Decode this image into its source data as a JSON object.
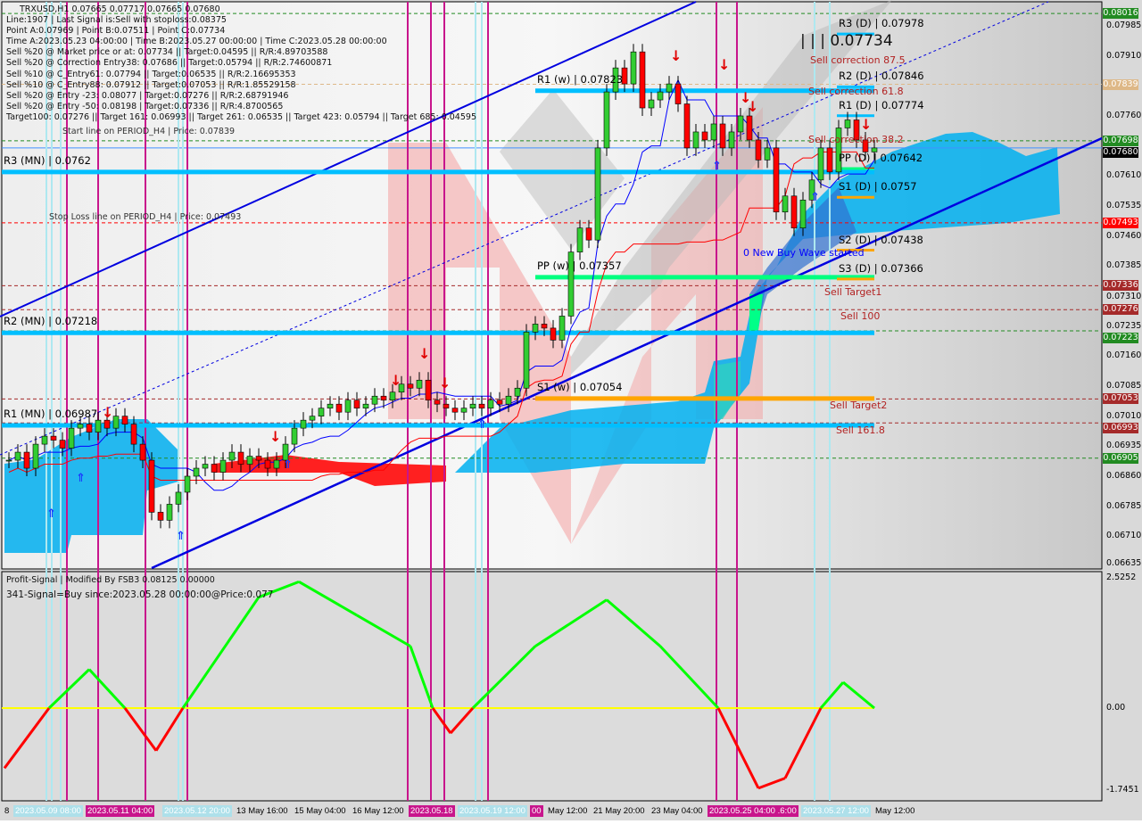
{
  "header": {
    "symbol_line": "TRXUSD,H1  0.07665 0.07717 0.07665 0.07680",
    "info_lines": [
      "Line:1907 | Last Signal is:Sell with stoploss:0.08375",
      "Point A:0.07969 | Point B:0.07511 | Point C:0.07734",
      "Time A:2023.05.23 04:00:00 | Time B:2023.05.27 00:00:00 | Time C:2023.05.28 00:00:00",
      "Sell %20 @ Market price or at: 0.07734 || Target:0.04595 || R/R:4.89703588",
      "Sell %20 @ Correction Entry38: 0.07686 || Target:0.05794 || R/R:2.74600871",
      "Sell %10 @ C_Entry61: 0.07794 || Target:0.06535 || R/R:2.16695353",
      "Sell %10 @ C_Entry88: 0.07912 || Target:0.07053 || R/R:1.85529158",
      "Sell %20 @ Entry -23: 0.08077 | Target:0.07276 || R/R:2.68791946",
      "Sell %20 @ Entry -50: 0.08198 | Target:0.07336 || R/R:4.8700565",
      "Target100: 0.07276 || Target 161: 0.06993 || Target 261: 0.06535 || Target 423: 0.05794 || Target 685: 0.04595"
    ],
    "start_line": "Start line on PERIOD_H4 | Price: 0.07839",
    "stop_loss_line": "Stop Loss line on PERIOD_H4 | Price: 0.07493"
  },
  "annotations": {
    "point_c": "| | | 0.07734",
    "sell_correction_875": "Sell correction 87.5",
    "sell_correction_618": "Sell correction 61.8",
    "sell_correction_382": "Sell correction 38.2",
    "new_buy_wave": "0 New Buy Wave started",
    "sell_target1": "Sell Target1",
    "sell_100": "Sell 100",
    "sell_target2": "Sell Target2",
    "sell_1618": "Sell 161.8"
  },
  "pivots": [
    {
      "label": "R3 (MN) | 0.0762",
      "price": 0.0762,
      "color": "#00bfff",
      "period": "MN"
    },
    {
      "label": "R2 (MN) | 0.07218",
      "price": 0.07218,
      "color": "#00bfff",
      "period": "MN"
    },
    {
      "label": "R1 (MN) | 0.06987",
      "price": 0.06987,
      "color": "#00bfff",
      "period": "MN"
    },
    {
      "label": "R1 (w) | 0.07823",
      "price": 0.07823,
      "color": "#00bfff",
      "period": "w"
    },
    {
      "label": "PP (w) | 0.07357",
      "price": 0.07357,
      "color": "#00ff7f",
      "period": "w"
    },
    {
      "label": "S1 (w) | 0.07054",
      "price": 0.07054,
      "color": "#ffa500",
      "period": "w"
    },
    {
      "label": "R3 (D) | 0.07978",
      "price": 0.07978,
      "color": "#00bfff",
      "period": "D"
    },
    {
      "label": "R2 (D) | 0.07846",
      "price": 0.07846,
      "color": "#00bfff",
      "period": "D"
    },
    {
      "label": "R1 (D) | 0.07774",
      "price": 0.07774,
      "color": "#00bfff",
      "period": "D"
    },
    {
      "label": "PP (D) | 0.07642",
      "price": 0.07642,
      "color": "#00ff7f",
      "period": "D"
    },
    {
      "label": "S1 (D) | 0.0757",
      "price": 0.0757,
      "color": "#ffa500",
      "period": "D"
    },
    {
      "label": "S2 (D) | 0.07438",
      "price": 0.07438,
      "color": "#ffa500",
      "period": "D"
    },
    {
      "label": "S3 (D) | 0.07366",
      "price": 0.07366,
      "color": "#ffa500",
      "period": "D"
    }
  ],
  "price_tags": [
    {
      "value": "0.08016",
      "price": 0.08016,
      "color": "#228b22"
    },
    {
      "value": "0.07839",
      "price": 0.07839,
      "color": "#deb887"
    },
    {
      "value": "0.07698",
      "price": 0.07698,
      "color": "#228b22"
    },
    {
      "value": "0.07680",
      "price": 0.0768,
      "color": "#000000"
    },
    {
      "value": "0.07493",
      "price": 0.07493,
      "color": "#ff0000"
    },
    {
      "value": "0.07336",
      "price": 0.07336,
      "color": "#a52a2a"
    },
    {
      "value": "0.07276",
      "price": 0.07276,
      "color": "#a52a2a"
    },
    {
      "value": "0.07223",
      "price": 0.07223,
      "color": "#228b22"
    },
    {
      "value": "0.07053",
      "price": 0.07053,
      "color": "#a52a2a"
    },
    {
      "value": "0.06993",
      "price": 0.06993,
      "color": "#a52a2a"
    },
    {
      "value": "0.06905",
      "price": 0.06905,
      "color": "#228b22"
    }
  ],
  "indicator": {
    "title": "Profit-Signal | Modified By FSB3 0.08125 0.00000",
    "signal": "341-Signal=Buy since:2023.05.28 00:00:00@Price:0.077"
  },
  "chart_data": [
    {
      "type": "candlestick",
      "symbol": "TRXUSD",
      "timeframe": "H1",
      "ylim": [
        0.06635,
        0.07985
      ],
      "y_ticks": [
        "0.07985",
        "0.07910",
        "0.07760",
        "0.07610",
        "0.07535",
        "0.07460",
        "0.07385",
        "0.07310",
        "0.07235",
        "0.07160",
        "0.07085",
        "0.07010",
        "0.06935",
        "0.06860",
        "0.06785",
        "0.06710",
        "0.06635"
      ],
      "x_ticks": [
        {
          "label": "8",
          "style": "plain"
        },
        {
          "label": "2023.05.09 08:00",
          "style": "cyan"
        },
        {
          "label": "2023.05.11 04:00",
          "style": "magenta"
        },
        {
          "label": "2023.05.12 20:00",
          "style": "cyan"
        },
        {
          "label": "13 May 16:00",
          "style": "plain"
        },
        {
          "label": "15 May 04:00",
          "style": "plain"
        },
        {
          "label": "16 May 12:00",
          "style": "plain"
        },
        {
          "label": "2023.05.18",
          "style": "magenta"
        },
        {
          "label": "2023.05.19 12:00",
          "style": "cyan"
        },
        {
          "label": "00",
          "style": "magenta"
        },
        {
          "label": "May 12:00",
          "style": "plain"
        },
        {
          "label": "21 May 20:00",
          "style": "plain"
        },
        {
          "label": "23 May 04:00",
          "style": "plain"
        },
        {
          "label": "2023.05.25 04:00 .6:00",
          "style": "magenta"
        },
        {
          "label": "2023.05.27 12:00",
          "style": "cyan"
        },
        {
          "label": "May 12:00",
          "style": "plain"
        }
      ],
      "close": [
        0.069,
        0.0692,
        0.0688,
        0.0694,
        0.0696,
        0.0695,
        0.0693,
        0.0698,
        0.0699,
        0.0697,
        0.07,
        0.0698,
        0.0701,
        0.0699,
        0.0694,
        0.069,
        0.0677,
        0.0675,
        0.0679,
        0.0682,
        0.0686,
        0.0688,
        0.0689,
        0.0687,
        0.069,
        0.0692,
        0.0689,
        0.0691,
        0.069,
        0.0688,
        0.069,
        0.0694,
        0.0698,
        0.07,
        0.0701,
        0.0703,
        0.0704,
        0.0702,
        0.0705,
        0.0703,
        0.0704,
        0.0706,
        0.0705,
        0.0707,
        0.0709,
        0.0708,
        0.071,
        0.0705,
        0.0704,
        0.0703,
        0.0702,
        0.0703,
        0.0704,
        0.0703,
        0.0705,
        0.0704,
        0.0706,
        0.0708,
        0.0722,
        0.0724,
        0.0723,
        0.072,
        0.0726,
        0.0742,
        0.0748,
        0.0745,
        0.0768,
        0.0782,
        0.0788,
        0.0784,
        0.0792,
        0.0778,
        0.078,
        0.0782,
        0.0784,
        0.0779,
        0.0768,
        0.0772,
        0.077,
        0.0774,
        0.0768,
        0.0772,
        0.0776,
        0.077,
        0.0765,
        0.0768,
        0.0752,
        0.0756,
        0.0748,
        0.0755,
        0.076,
        0.0768,
        0.0762,
        0.0773,
        0.0775,
        0.077,
        0.0767,
        0.0768
      ],
      "up_color": "#32cd32",
      "down_color": "#ff0000"
    },
    {
      "type": "line",
      "name": "Profit-Signal",
      "ylim": [
        -1.7451,
        2.5252
      ],
      "y_ticks": [
        "2.5252",
        "0.00",
        "-1.7451"
      ],
      "points": [
        [
          -0.5,
          -1.2
        ],
        [
          2,
          -0.6
        ],
        [
          4.5,
          0
        ],
        [
          9,
          0.75
        ],
        [
          13,
          0
        ],
        [
          16.5,
          -0.85
        ],
        [
          19.5,
          0
        ],
        [
          28,
          2.15
        ],
        [
          32.5,
          2.45
        ],
        [
          39,
          1.8
        ],
        [
          45,
          1.2
        ],
        [
          47.5,
          0
        ],
        [
          49.5,
          -0.5
        ],
        [
          52,
          0
        ],
        [
          59,
          1.2
        ],
        [
          67,
          2.1
        ],
        [
          73,
          1.2
        ],
        [
          79.5,
          0
        ],
        [
          84,
          -1.6
        ],
        [
          87,
          -1.4
        ],
        [
          91,
          0
        ],
        [
          93.5,
          0.5
        ],
        [
          97,
          0
        ]
      ],
      "positive_color": "#00ff00",
      "negative_color": "#ff0000",
      "zero_line_color": "#ffff00"
    }
  ]
}
